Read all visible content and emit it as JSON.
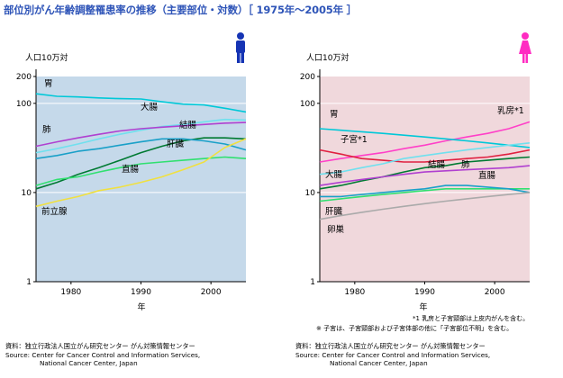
{
  "title": "部位別がん年齢調整罹患率の推移（主要部位・対数）［ 1975年〜2005年 ］",
  "icons": {
    "male": "male-person-icon",
    "female": "female-person-icon"
  },
  "colors": {
    "title": "#2f55b8",
    "male_bg": "#c5d9ea",
    "female_bg": "#f0d8dc",
    "male_icon": "#1634b4",
    "female_icon": "#ff2cc2"
  },
  "footnotes": [
    "*1 乳房と子宮頸部は上皮内がんを含む。",
    "※ 子宮は、子宮頸部および子宮体部の他に「子宮部位不明」を含む。"
  ],
  "source": {
    "left": [
      "資料：独立行政法人国立がん研究センター がん対策情報センター",
      "Source: Center for Cancer Control and Information Services,",
      "National Cancer Center, Japan"
    ],
    "right": [
      "資料：独立行政法人国立がん研究センター がん対策情報センター",
      "Source: Center for Cancer Control and Information Services,",
      "National Cancer Center, Japan"
    ]
  },
  "chart_data": [
    {
      "type": "line",
      "panel": "male",
      "ylabel": "人口10万対",
      "xlabel": "年",
      "yscale": "log",
      "ylim": [
        1,
        200
      ],
      "yticks": [
        1,
        10,
        100,
        200
      ],
      "xlim": [
        1975,
        2005
      ],
      "xticks": [
        1980,
        1990,
        2000
      ],
      "grid": "horizontal",
      "series": [
        {
          "name": "胃",
          "color": "#00c8d8",
          "points": [
            [
              1975,
              128
            ],
            [
              1978,
              120
            ],
            [
              1981,
              118
            ],
            [
              1984,
              115
            ],
            [
              1987,
              113
            ],
            [
              1990,
              112
            ],
            [
              1993,
              104
            ],
            [
              1996,
              98
            ],
            [
              1999,
              96
            ],
            [
              2002,
              88
            ],
            [
              2005,
              80
            ]
          ]
        },
        {
          "name": "大腸",
          "color": "#70e0ee",
          "points": [
            [
              1975,
              28
            ],
            [
              1978,
              31
            ],
            [
              1981,
              35
            ],
            [
              1984,
              40
            ],
            [
              1987,
              45
            ],
            [
              1990,
              50
            ],
            [
              1993,
              55
            ],
            [
              1996,
              58
            ],
            [
              1999,
              62
            ],
            [
              2002,
              66
            ],
            [
              2005,
              65
            ]
          ]
        },
        {
          "name": "肺",
          "color": "#b040d0",
          "points": [
            [
              1975,
              33
            ],
            [
              1978,
              37
            ],
            [
              1981,
              41
            ],
            [
              1984,
              45
            ],
            [
              1987,
              49
            ],
            [
              1990,
              52
            ],
            [
              1993,
              54
            ],
            [
              1996,
              56
            ],
            [
              1999,
              58
            ],
            [
              2002,
              60
            ],
            [
              2005,
              61
            ]
          ]
        },
        {
          "name": "結腸",
          "color": "#007a32",
          "points": [
            [
              1975,
              11
            ],
            [
              1978,
              13
            ],
            [
              1981,
              16
            ],
            [
              1984,
              19
            ],
            [
              1987,
              23
            ],
            [
              1990,
              28
            ],
            [
              1993,
              33
            ],
            [
              1996,
              38
            ],
            [
              1999,
              41
            ],
            [
              2002,
              41
            ],
            [
              2005,
              40
            ]
          ]
        },
        {
          "name": "肝臓",
          "color": "#1aa0c8",
          "points": [
            [
              1975,
              24
            ],
            [
              1978,
              26
            ],
            [
              1981,
              29
            ],
            [
              1984,
              31
            ],
            [
              1987,
              34
            ],
            [
              1990,
              37
            ],
            [
              1993,
              40
            ],
            [
              1996,
              40
            ],
            [
              1999,
              38
            ],
            [
              2002,
              35
            ],
            [
              2005,
              30
            ]
          ]
        },
        {
          "name": "直腸",
          "color": "#30e070",
          "points": [
            [
              1975,
              12
            ],
            [
              1978,
              14
            ],
            [
              1981,
              15
            ],
            [
              1984,
              17
            ],
            [
              1987,
              19
            ],
            [
              1990,
              21
            ],
            [
              1993,
              22
            ],
            [
              1996,
              23
            ],
            [
              1999,
              24
            ],
            [
              2002,
              25
            ],
            [
              2005,
              24
            ]
          ]
        },
        {
          "name": "前立腺",
          "color": "#f0e040",
          "points": [
            [
              1975,
              7
            ],
            [
              1978,
              8
            ],
            [
              1981,
              9
            ],
            [
              1984,
              10.5
            ],
            [
              1987,
              11.5
            ],
            [
              1990,
              13
            ],
            [
              1993,
              15
            ],
            [
              1996,
              18
            ],
            [
              1999,
              22
            ],
            [
              2002,
              32
            ],
            [
              2005,
              40
            ]
          ]
        }
      ]
    },
    {
      "type": "line",
      "panel": "female",
      "ylabel": "人口10万対",
      "xlabel": "年",
      "yscale": "log",
      "ylim": [
        1,
        200
      ],
      "yticks": [
        1,
        10,
        100,
        200
      ],
      "xlim": [
        1975,
        2005
      ],
      "xticks": [
        1980,
        1990,
        2000
      ],
      "grid": "horizontal",
      "series": [
        {
          "name": "乳房*1",
          "color": "#ff40c8",
          "points": [
            [
              1975,
              22
            ],
            [
              1978,
              24
            ],
            [
              1981,
              26
            ],
            [
              1984,
              28
            ],
            [
              1987,
              31
            ],
            [
              1990,
              34
            ],
            [
              1993,
              38
            ],
            [
              1996,
              42
            ],
            [
              1999,
              46
            ],
            [
              2002,
              52
            ],
            [
              2005,
              62
            ]
          ]
        },
        {
          "name": "胃",
          "color": "#00c8d8",
          "points": [
            [
              1975,
              52
            ],
            [
              1978,
              50
            ],
            [
              1981,
              48
            ],
            [
              1984,
              46
            ],
            [
              1987,
              44
            ],
            [
              1990,
              42
            ],
            [
              1993,
              40
            ],
            [
              1996,
              38
            ],
            [
              1999,
              36
            ],
            [
              2002,
              34
            ],
            [
              2005,
              32
            ]
          ]
        },
        {
          "name": "子宮*1",
          "color": "#e02040",
          "points": [
            [
              1975,
              30
            ],
            [
              1978,
              27
            ],
            [
              1981,
              24
            ],
            [
              1984,
              23
            ],
            [
              1987,
              22
            ],
            [
              1990,
              22
            ],
            [
              1993,
              23
            ],
            [
              1996,
              24
            ],
            [
              1999,
              25
            ],
            [
              2002,
              27
            ],
            [
              2005,
              30
            ]
          ]
        },
        {
          "name": "大腸",
          "color": "#70e0ee",
          "points": [
            [
              1975,
              16
            ],
            [
              1978,
              17
            ],
            [
              1981,
              19
            ],
            [
              1984,
              21
            ],
            [
              1987,
              24
            ],
            [
              1990,
              26
            ],
            [
              1993,
              28
            ],
            [
              1996,
              30
            ],
            [
              1999,
              32
            ],
            [
              2002,
              34
            ],
            [
              2005,
              36
            ]
          ]
        },
        {
          "name": "結腸",
          "color": "#007a32",
          "points": [
            [
              1975,
              11
            ],
            [
              1978,
              12
            ],
            [
              1981,
              13.5
            ],
            [
              1984,
              15
            ],
            [
              1987,
              17
            ],
            [
              1990,
              19
            ],
            [
              1993,
              20
            ],
            [
              1996,
              22
            ],
            [
              1999,
              23
            ],
            [
              2002,
              24
            ],
            [
              2005,
              25
            ]
          ]
        },
        {
          "name": "肺",
          "color": "#b040d0",
          "points": [
            [
              1975,
              12
            ],
            [
              1978,
              13
            ],
            [
              1981,
              14
            ],
            [
              1984,
              15
            ],
            [
              1987,
              16
            ],
            [
              1990,
              17
            ],
            [
              1993,
              17.5
            ],
            [
              1996,
              18
            ],
            [
              1999,
              18.5
            ],
            [
              2002,
              19
            ],
            [
              2005,
              20
            ]
          ]
        },
        {
          "name": "直腸",
          "color": "#30e070",
          "points": [
            [
              1975,
              8
            ],
            [
              1978,
              8.5
            ],
            [
              1981,
              9
            ],
            [
              1984,
              9.5
            ],
            [
              1987,
              10
            ],
            [
              1990,
              10.5
            ],
            [
              1993,
              11
            ],
            [
              1996,
              11
            ],
            [
              1999,
              11
            ],
            [
              2002,
              11
            ],
            [
              2005,
              11
            ]
          ]
        },
        {
          "name": "肝臓",
          "color": "#1aa0c8",
          "points": [
            [
              1975,
              9
            ],
            [
              1978,
              9
            ],
            [
              1981,
              9.5
            ],
            [
              1984,
              10
            ],
            [
              1987,
              10.5
            ],
            [
              1990,
              11
            ],
            [
              1993,
              12
            ],
            [
              1996,
              12
            ],
            [
              1999,
              11.5
            ],
            [
              2002,
              11
            ],
            [
              2005,
              10
            ]
          ]
        },
        {
          "name": "卵巣",
          "color": "#aaaaaa",
          "points": [
            [
              1975,
              5
            ],
            [
              1978,
              5.5
            ],
            [
              1981,
              6
            ],
            [
              1984,
              6.5
            ],
            [
              1987,
              7
            ],
            [
              1990,
              7.5
            ],
            [
              1993,
              8
            ],
            [
              1996,
              8.5
            ],
            [
              1999,
              9
            ],
            [
              2002,
              9.5
            ],
            [
              2005,
              10
            ]
          ]
        }
      ]
    }
  ]
}
